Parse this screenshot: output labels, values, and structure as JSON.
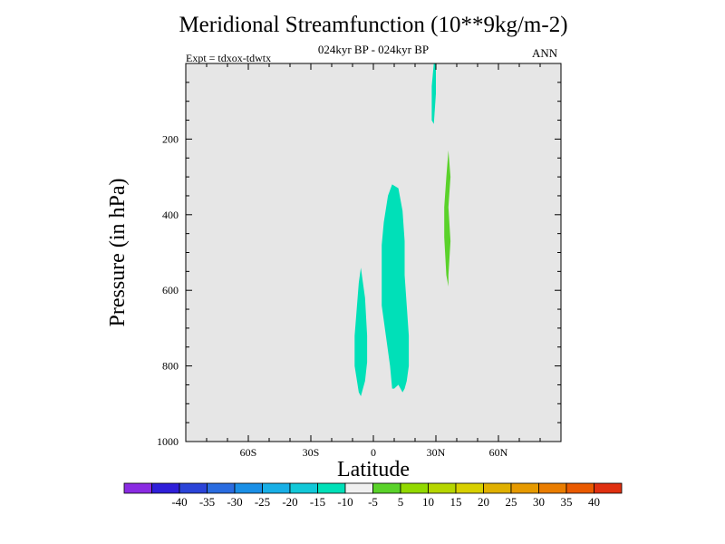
{
  "header": {
    "title": "Meridional Streamfunction (10**9kg/m-2)",
    "subtitle": "024kyr BP - 024kyr BP",
    "expt": "Expt = tdxox-tdwtx",
    "season": "ANN"
  },
  "colors": {
    "plot_bg": "#e6e6e6",
    "palette": [
      "#8a2be2",
      "#2f1fd9",
      "#2b44d8",
      "#2a6ce0",
      "#1a8fe6",
      "#18afe6",
      "#12c8d8",
      "#00e0b8",
      "#f0f0f0",
      "#5ad22a",
      "#92d900",
      "#b6d600",
      "#d8d000",
      "#e0b000",
      "#e69a00",
      "#ea7d00",
      "#ea5a00",
      "#e03010"
    ]
  },
  "chart_data": {
    "type": "contour",
    "title": "Meridional Streamfunction (10**9kg/m-2)",
    "xlabel": "Latitude",
    "ylabel": "Pressure (in hPa)",
    "xlim": [
      -90,
      90
    ],
    "ylim": [
      0,
      1000
    ],
    "y_inverted": true,
    "xticks": [
      -60,
      -30,
      0,
      30,
      60
    ],
    "xtick_labels": [
      "60S",
      "30S",
      "0",
      "30N",
      "60N"
    ],
    "yticks": [
      200,
      400,
      600,
      800,
      1000
    ],
    "ytick_labels": [
      "200",
      "400",
      "600",
      "800",
      "1000"
    ],
    "colorbar": {
      "levels": [
        -40,
        -35,
        -30,
        -25,
        -20,
        -15,
        -10,
        -5,
        5,
        10,
        15,
        20,
        25,
        30,
        35,
        40
      ],
      "labels": [
        "-40",
        "-35",
        "-30",
        "-25",
        "-20",
        "-15",
        "-10",
        "-5",
        "5",
        "10",
        "15",
        "20",
        "25",
        "30",
        "35",
        "40"
      ]
    },
    "regions": [
      {
        "name": "teal-region-subtropical-north",
        "value_range": [
          -10,
          -5
        ],
        "color_index": 7,
        "points": [
          [
            -6,
            540
          ],
          [
            -4,
            620
          ],
          [
            -3,
            720
          ],
          [
            -3,
            790
          ],
          [
            -4,
            840
          ],
          [
            -6,
            880
          ],
          [
            -7,
            870
          ],
          [
            -9,
            800
          ],
          [
            -9,
            720
          ],
          [
            -8,
            650
          ],
          [
            -7,
            580
          ]
        ]
      },
      {
        "name": "teal-region-main-cell",
        "value_range": [
          -10,
          -5
        ],
        "color_index": 7,
        "points": [
          [
            9,
            320
          ],
          [
            12,
            330
          ],
          [
            14,
            390
          ],
          [
            15,
            470
          ],
          [
            15,
            560
          ],
          [
            16,
            640
          ],
          [
            17,
            720
          ],
          [
            17,
            800
          ],
          [
            16,
            840
          ],
          [
            15,
            860
          ],
          [
            14,
            870
          ],
          [
            12,
            850
          ],
          [
            10,
            860
          ],
          [
            9,
            860
          ],
          [
            8,
            800
          ],
          [
            6,
            720
          ],
          [
            4,
            640
          ],
          [
            4,
            560
          ],
          [
            4,
            480
          ],
          [
            5,
            420
          ],
          [
            7,
            350
          ]
        ]
      },
      {
        "name": "teal-region-upper-tropopause",
        "value_range": [
          -10,
          -5
        ],
        "color_index": 7,
        "points": [
          [
            29,
            0
          ],
          [
            30,
            0
          ],
          [
            30,
            80
          ],
          [
            29,
            160
          ],
          [
            28,
            150
          ],
          [
            28,
            60
          ]
        ]
      },
      {
        "name": "green-region-30N",
        "value_range": [
          5,
          10
        ],
        "color_index": 9,
        "points": [
          [
            36,
            230
          ],
          [
            37,
            300
          ],
          [
            36,
            380
          ],
          [
            37,
            470
          ],
          [
            36,
            560
          ],
          [
            36,
            590
          ],
          [
            35,
            560
          ],
          [
            34,
            460
          ],
          [
            34,
            380
          ],
          [
            35,
            300
          ]
        ]
      }
    ]
  }
}
